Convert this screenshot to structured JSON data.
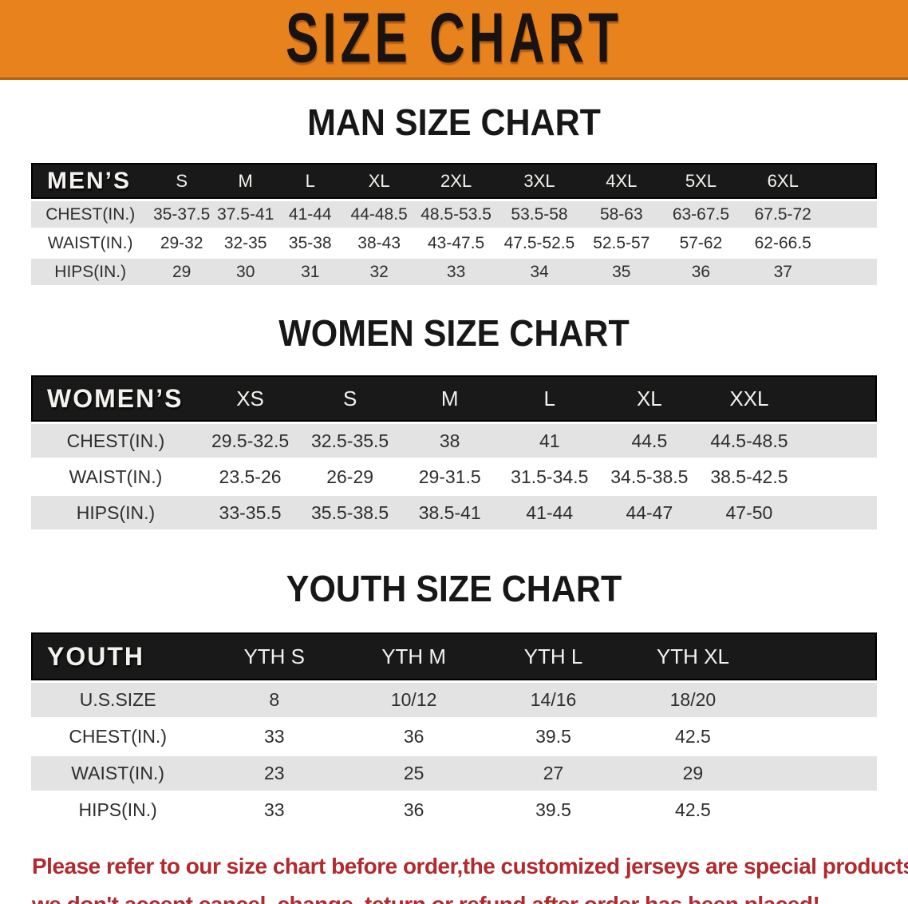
{
  "banner": {
    "title": "SIZE CHART",
    "bg_color": "#E8821C",
    "text_color": "#181210"
  },
  "chart_data": [
    {
      "type": "table",
      "title": "MAN SIZE CHART",
      "corner_label": "MEN’S",
      "columns": [
        "S",
        "M",
        "L",
        "XL",
        "2XL",
        "3XL",
        "4XL",
        "5XL",
        "6XL"
      ],
      "rows": [
        {
          "label": "CHEST(IN.)",
          "values": [
            "35-37.5",
            "37.5-41",
            "41-44",
            "44-48.5",
            "48.5-53.5",
            "53.5-58",
            "58-63",
            "63-67.5",
            "67.5-72"
          ]
        },
        {
          "label": "WAIST(IN.)",
          "values": [
            "29-32",
            "32-35",
            "35-38",
            "38-43",
            "43-47.5",
            "47.5-52.5",
            "52.5-57",
            "57-62",
            "62-66.5"
          ]
        },
        {
          "label": "HIPS(IN.)",
          "values": [
            "29",
            "30",
            "31",
            "32",
            "33",
            "34",
            "35",
            "36",
            "37"
          ]
        }
      ]
    },
    {
      "type": "table",
      "title": "WOMEN SIZE CHART",
      "corner_label": "WOMEN’S",
      "columns": [
        "XS",
        "S",
        "M",
        "L",
        "XL",
        "XXL"
      ],
      "rows": [
        {
          "label": "CHEST(IN.)",
          "values": [
            "29.5-32.5",
            "32.5-35.5",
            "38",
            "41",
            "44.5",
            "44.5-48.5"
          ]
        },
        {
          "label": "WAIST(IN.)",
          "values": [
            "23.5-26",
            "26-29",
            "29-31.5",
            "31.5-34.5",
            "34.5-38.5",
            "38.5-42.5"
          ]
        },
        {
          "label": "HIPS(IN.)",
          "values": [
            "33-35.5",
            "35.5-38.5",
            "38.5-41",
            "41-44",
            "44-47",
            "47-50"
          ]
        }
      ]
    },
    {
      "type": "table",
      "title": "YOUTH SIZE CHART",
      "corner_label": "YOUTH",
      "columns": [
        "YTH S",
        "YTH M",
        "YTH L",
        "YTH XL"
      ],
      "rows": [
        {
          "label": "U.S.SIZE",
          "values": [
            "8",
            "10/12",
            "14/16",
            "18/20"
          ]
        },
        {
          "label": "CHEST(IN.)",
          "values": [
            "33",
            "36",
            "39.5",
            "42.5"
          ]
        },
        {
          "label": "WAIST(IN.)",
          "values": [
            "23",
            "25",
            "27",
            "29"
          ]
        },
        {
          "label": "HIPS(IN.)",
          "values": [
            "33",
            "36",
            "39.5",
            "42.5"
          ]
        }
      ]
    }
  ],
  "table_style": {
    "header_bar_color": "#191919",
    "header_text_color": "#f4f2ee",
    "striped_row_color": "#E3E3E4",
    "body_text_color": "#2e2e2e"
  },
  "disclaimer": {
    "line1": "Please refer to our size chart before order,the customized jerseys are special products,",
    "line2": "we don't accept cancel, change, teturn or refund after order has been placed!",
    "color": "#B02A2E"
  }
}
